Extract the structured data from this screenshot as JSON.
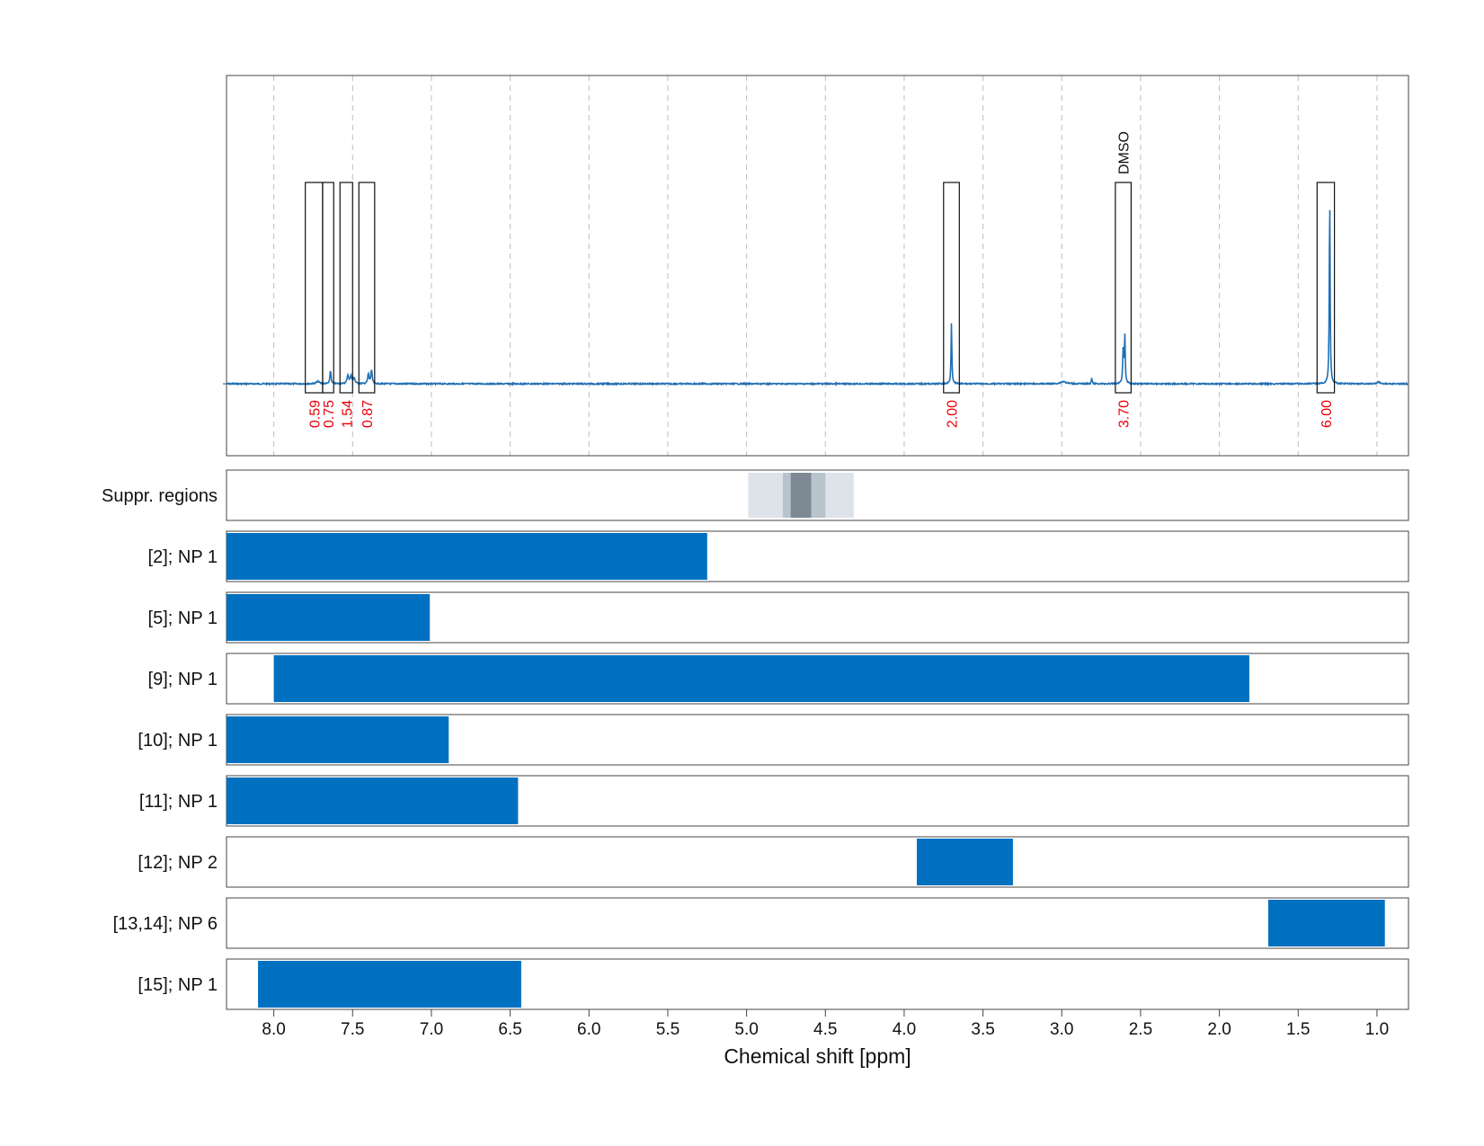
{
  "chart_data": {
    "type": "nmr-spectrum-with-range-bars",
    "xlabel": "Chemical shift [ppm]",
    "x_ticks": [
      "8.0",
      "7.5",
      "7.0",
      "6.5",
      "6.0",
      "5.5",
      "5.0",
      "4.5",
      "4.0",
      "3.5",
      "3.0",
      "2.5",
      "2.0",
      "1.5",
      "1.0"
    ],
    "xlim": [
      8.3,
      0.8
    ],
    "grid": true,
    "line_color": "#1f6fb4",
    "bar_color": "#0070c0",
    "integration_color": "#e8000b",
    "spectrum_peaks": [
      {
        "ppm": 7.72,
        "height": 0.012,
        "width": 0.012
      },
      {
        "ppm": 7.64,
        "height": 0.07,
        "width": 0.004
      },
      {
        "ppm": 7.53,
        "height": 0.045,
        "width": 0.006
      },
      {
        "ppm": 7.51,
        "height": 0.04,
        "width": 0.006
      },
      {
        "ppm": 7.49,
        "height": 0.03,
        "width": 0.006
      },
      {
        "ppm": 7.4,
        "height": 0.05,
        "width": 0.005
      },
      {
        "ppm": 7.38,
        "height": 0.07,
        "width": 0.005
      },
      {
        "ppm": 3.7,
        "height": 0.32,
        "width": 0.003
      },
      {
        "ppm": 2.99,
        "height": 0.012,
        "width": 0.02
      },
      {
        "ppm": 2.81,
        "height": 0.03,
        "width": 0.003
      },
      {
        "ppm": 2.61,
        "height": 0.18,
        "width": 0.004
      },
      {
        "ppm": 2.6,
        "height": 0.25,
        "width": 0.003
      },
      {
        "ppm": 1.3,
        "height": 1.0,
        "width": 0.003
      },
      {
        "ppm": 0.99,
        "height": 0.01,
        "width": 0.01
      }
    ],
    "integration_regions": [
      {
        "from": 7.8,
        "to": 7.69,
        "value": "0.59",
        "label": ""
      },
      {
        "from": 7.69,
        "to": 7.62,
        "value": "0.75",
        "label": ""
      },
      {
        "from": 7.58,
        "to": 7.5,
        "value": "1.54",
        "label": ""
      },
      {
        "from": 7.46,
        "to": 7.36,
        "value": "0.87",
        "label": ""
      },
      {
        "from": 3.75,
        "to": 3.65,
        "value": "2.00",
        "label": ""
      },
      {
        "from": 2.66,
        "to": 2.56,
        "value": "3.70",
        "label": "DMSO"
      },
      {
        "from": 1.38,
        "to": 1.27,
        "value": "6.00",
        "label": ""
      }
    ],
    "suppression": {
      "label": "Suppr. regions",
      "layers": [
        {
          "from": 4.99,
          "to": 4.32,
          "color": "#dde3e8"
        },
        {
          "from": 4.77,
          "to": 4.5,
          "color": "#b9c3cb"
        },
        {
          "from": 4.72,
          "to": 4.59,
          "color": "#7d8a95"
        }
      ]
    },
    "series": [
      {
        "name": "[2]; NP 1",
        "from": 8.3,
        "to": 5.25
      },
      {
        "name": "[5]; NP 1",
        "from": 8.3,
        "to": 7.01
      },
      {
        "name": "[9]; NP 1",
        "from": 8.0,
        "to": 1.81
      },
      {
        "name": "[10]; NP 1",
        "from": 8.3,
        "to": 6.89
      },
      {
        "name": "[11]; NP 1",
        "from": 8.3,
        "to": 6.45
      },
      {
        "name": "[12]; NP 2",
        "from": 3.92,
        "to": 3.31
      },
      {
        "name": "[13,14]; NP 6",
        "from": 1.69,
        "to": 0.95
      },
      {
        "name": "[15]; NP 1",
        "from": 8.1,
        "to": 6.43
      }
    ]
  }
}
